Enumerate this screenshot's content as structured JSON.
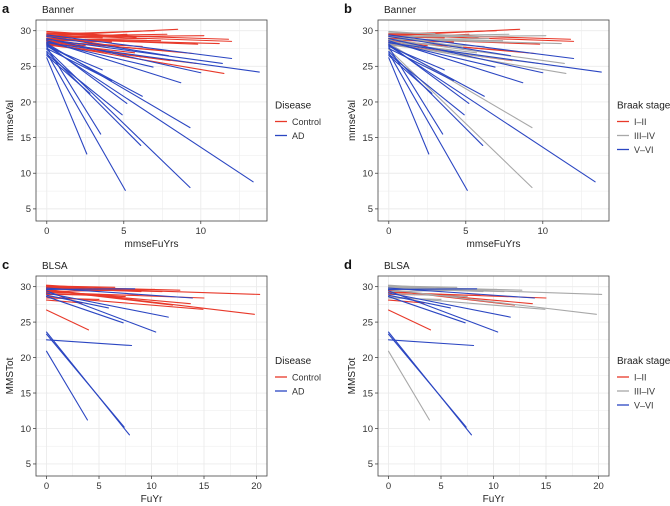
{
  "colors": {
    "Control": "#e8392a",
    "AD": "#2b46c2",
    "I–II": "#e8392a",
    "III–IV": "#a8a8a8",
    "V–VI": "#2b46c2",
    "grid": "#ebebeb",
    "axis": "#444444"
  },
  "chart_data": [
    {
      "type": "line",
      "panel_letter": "a",
      "title": "Banner",
      "xlabel": "mmseFuYrs",
      "ylabel": "mmseVal",
      "xlim": [
        -0.7,
        14.3
      ],
      "ylim": [
        3.3,
        31.5
      ],
      "xticks": [
        0,
        5,
        10
      ],
      "yticks": [
        5,
        10,
        15,
        20,
        25,
        30
      ],
      "legend": {
        "title": "Disease",
        "entries": [
          "Control",
          "AD"
        ],
        "position": "right"
      },
      "series": [
        {
          "name": "Control",
          "segments": [
            [
              0,
              29.6,
              11.8,
              28.8
            ],
            [
              0,
              29.4,
              12,
              28.5
            ],
            [
              0,
              29.3,
              8.5,
              30.2
            ],
            [
              0,
              29.1,
              10.2,
              29.3
            ],
            [
              0,
              28.9,
              9.8,
              28.1
            ],
            [
              0,
              29.2,
              7.8,
              29.5
            ],
            [
              0,
              28.8,
              11.2,
              28.2
            ],
            [
              0,
              28.7,
              6.5,
              28.9
            ],
            [
              0,
              28.6,
              9.5,
              26.8
            ],
            [
              0,
              28.9,
              5.2,
              29.5
            ],
            [
              0,
              28.5,
              7.8,
              27.2
            ],
            [
              0,
              28.2,
              11.5,
              24
            ],
            [
              0,
              28.4,
              6.2,
              27.8
            ],
            [
              0,
              28.7,
              4.2,
              28.4
            ],
            [
              0,
              29.1,
              3.6,
              29
            ],
            [
              0,
              28.1,
              8,
              25.8
            ],
            [
              0,
              28.3,
              5.7,
              26.9
            ],
            [
              0,
              29.5,
              7,
              30
            ],
            [
              0,
              28.8,
              7.4,
              28.6
            ],
            [
              0,
              29.7,
              3,
              29.6
            ],
            [
              0,
              28,
              9.7,
              25.4
            ],
            [
              0,
              28.4,
              2.5,
              27.9
            ],
            [
              0,
              29.3,
              4.8,
              27.7
            ],
            [
              0,
              28.6,
              6.2,
              26.3
            ],
            [
              0,
              29.9,
              5.8,
              29.1
            ]
          ]
        },
        {
          "name": "AD",
          "segments": [
            [
              0,
              26.2,
              2.6,
              12.7
            ],
            [
              0,
              26.9,
              5.1,
              7.6
            ],
            [
              0,
              27.4,
              9.3,
              8
            ],
            [
              0,
              27.9,
              13.4,
              8.8
            ],
            [
              0,
              27.7,
              3.5,
              15.5
            ],
            [
              0,
              28.2,
              9.3,
              16.4
            ],
            [
              0,
              26.7,
              4.9,
              18.2
            ],
            [
              0,
              27.1,
              6.1,
              13.9
            ],
            [
              0,
              28.3,
              13.8,
              24.2
            ],
            [
              0,
              28.8,
              11.4,
              25.4
            ],
            [
              0,
              28,
              6.2,
              20.8
            ],
            [
              0,
              27.5,
              4.2,
              23
            ],
            [
              0,
              28.6,
              8.7,
              22.7
            ],
            [
              0,
              26.5,
              2.8,
              21.2
            ],
            [
              0,
              28.9,
              10,
              24.1
            ],
            [
              0,
              29.2,
              7.9,
              26.5
            ],
            [
              0,
              27.8,
              3.6,
              24.5
            ],
            [
              0,
              28.1,
              5.2,
              19.8
            ],
            [
              0,
              29.4,
              12,
              26.1
            ],
            [
              0,
              28.4,
              6.9,
              24.9
            ]
          ]
        }
      ]
    },
    {
      "type": "line",
      "panel_letter": "b",
      "title": "Banner",
      "xlabel": "mmseFuYrs",
      "ylabel": "mmseVal",
      "xlim": [
        -0.7,
        14.3
      ],
      "ylim": [
        3.3,
        31.5
      ],
      "xticks": [
        0,
        5,
        10
      ],
      "yticks": [
        5,
        10,
        15,
        20,
        25,
        30
      ],
      "legend": {
        "title": "Braak stage",
        "entries": [
          "I–II",
          "III–IV",
          "V–VI"
        ],
        "position": "right"
      },
      "series": [
        {
          "name": "I–II",
          "segments": [
            [
              0,
              29.6,
              11.8,
              28.8
            ],
            [
              0,
              29.4,
              12,
              28.5
            ],
            [
              0,
              29.3,
              8.5,
              30.2
            ],
            [
              0,
              28.9,
              9.8,
              28.1
            ],
            [
              0,
              28.6,
              9.5,
              26.8
            ],
            [
              0,
              28.9,
              5.2,
              29.5
            ],
            [
              0,
              28.5,
              7.8,
              27.2
            ],
            [
              0,
              28.7,
              4.2,
              28.4
            ],
            [
              0,
              29.1,
              3.6,
              29
            ],
            [
              0,
              28.1,
              8,
              25.8
            ],
            [
              0,
              29.5,
              7,
              30
            ],
            [
              0,
              28.4,
              2.5,
              27.9
            ]
          ]
        },
        {
          "name": "III–IV",
          "segments": [
            [
              0,
              29.1,
              10.2,
              29.3
            ],
            [
              0,
              29.2,
              7.8,
              29.5
            ],
            [
              0,
              28.8,
              11.2,
              28.2
            ],
            [
              0,
              28.7,
              6.5,
              28.9
            ],
            [
              0,
              28.2,
              11.5,
              24
            ],
            [
              0,
              28.4,
              6.2,
              27.8
            ],
            [
              0,
              28.3,
              5.7,
              26.9
            ],
            [
              0,
              28.8,
              7.4,
              28.6
            ],
            [
              0,
              29.7,
              3,
              29.6
            ],
            [
              0,
              28,
              9.7,
              25.4
            ],
            [
              0,
              29.3,
              4.8,
              27.7
            ],
            [
              0,
              28.6,
              6.2,
              26.3
            ],
            [
              0,
              29.9,
              5.8,
              29.1
            ],
            [
              0,
              27.4,
              9.3,
              8
            ],
            [
              0,
              28.2,
              9.3,
              16.4
            ],
            [
              0,
              28.8,
              11.4,
              25.4
            ]
          ]
        },
        {
          "name": "V–VI",
          "segments": [
            [
              0,
              26.2,
              2.6,
              12.7
            ],
            [
              0,
              26.9,
              5.1,
              7.6
            ],
            [
              0,
              27.9,
              13.4,
              8.8
            ],
            [
              0,
              27.7,
              3.5,
              15.5
            ],
            [
              0,
              26.7,
              4.9,
              18.2
            ],
            [
              0,
              27.1,
              6.1,
              13.9
            ],
            [
              0,
              28.3,
              13.8,
              24.2
            ],
            [
              0,
              28,
              6.2,
              20.8
            ],
            [
              0,
              27.5,
              4.2,
              23
            ],
            [
              0,
              28.6,
              8.7,
              22.7
            ],
            [
              0,
              26.5,
              2.8,
              21.2
            ],
            [
              0,
              28.9,
              10,
              24.1
            ],
            [
              0,
              29.2,
              7.9,
              26.5
            ],
            [
              0,
              27.8,
              3.6,
              24.5
            ],
            [
              0,
              28.1,
              5.2,
              19.8
            ],
            [
              0,
              29.4,
              12,
              26.1
            ],
            [
              0,
              28.4,
              6.9,
              24.9
            ]
          ]
        }
      ]
    },
    {
      "type": "line",
      "panel_letter": "c",
      "title": "BLSA",
      "xlabel": "FuYr",
      "ylabel": "MMSTot",
      "xlim": [
        -1,
        21
      ],
      "ylim": [
        3.3,
        31.5
      ],
      "xticks": [
        0,
        5,
        10,
        15,
        20
      ],
      "yticks": [
        5,
        10,
        15,
        20,
        25,
        30
      ],
      "legend": {
        "title": "Disease",
        "entries": [
          "Control",
          "AD"
        ],
        "position": "right"
      },
      "series": [
        {
          "name": "Control",
          "segments": [
            [
              0,
              29.9,
              20.3,
              28.9
            ],
            [
              0,
              29.6,
              19.8,
              26.1
            ],
            [
              0,
              30,
              12.7,
              29.5
            ],
            [
              0,
              29.2,
              15,
              28.4
            ],
            [
              0,
              29.7,
              11,
              29.3
            ],
            [
              0,
              29.4,
              13.7,
              27.6
            ],
            [
              0,
              28.9,
              8.7,
              28.8
            ],
            [
              0,
              30.1,
              6.5,
              29.9
            ],
            [
              0,
              29.3,
              10.3,
              29.6
            ],
            [
              0,
              28.6,
              14.9,
              26.8
            ],
            [
              0,
              29.8,
              9,
              29.3
            ],
            [
              0,
              28.4,
              5,
              28.2
            ],
            [
              0,
              29,
              7.5,
              28.6
            ],
            [
              0,
              26.7,
              4,
              23.9
            ],
            [
              0,
              29.5,
              12,
              27.4
            ],
            [
              0,
              30.2,
              4.3,
              29.8
            ],
            [
              0,
              28.1,
              3.4,
              27.7
            ]
          ]
        },
        {
          "name": "AD",
          "segments": [
            [
              0,
              23.6,
              7.9,
              9.1
            ],
            [
              0,
              23.3,
              7.4,
              10.2
            ],
            [
              0,
              20.9,
              3.9,
              11.2
            ],
            [
              0,
              22.5,
              8.1,
              21.7
            ],
            [
              0,
              29.4,
              10.4,
              23.6
            ],
            [
              0,
              29.8,
              13.9,
              28.4
            ],
            [
              0,
              29.1,
              11.6,
              25.7
            ],
            [
              0,
              28.6,
              7.3,
              24.9
            ],
            [
              0,
              29.6,
              8.4,
              29.7
            ],
            [
              0,
              28.8,
              5.9,
              27
            ]
          ]
        }
      ]
    },
    {
      "type": "line",
      "panel_letter": "d",
      "title": "BLSA",
      "xlabel": "FuYr",
      "ylabel": "MMSTot",
      "xlim": [
        -1,
        21
      ],
      "ylim": [
        3.3,
        31.5
      ],
      "xticks": [
        0,
        5,
        10,
        15,
        20
      ],
      "yticks": [
        5,
        10,
        15,
        20,
        25,
        30
      ],
      "legend": {
        "title": "Braak stage",
        "entries": [
          "I–II",
          "III–IV",
          "V–VI"
        ],
        "position": "right"
      },
      "series": [
        {
          "name": "I–II",
          "segments": [
            [
              0,
              29.2,
              15,
              28.4
            ],
            [
              0,
              29.4,
              13.7,
              27.6
            ],
            [
              0,
              28.9,
              8.7,
              28.8
            ],
            [
              0,
              26.7,
              4,
              23.9
            ],
            [
              0,
              29.5,
              12,
              27.4
            ],
            [
              0,
              28.1,
              3.4,
              27.7
            ]
          ]
        },
        {
          "name": "III–IV",
          "segments": [
            [
              0,
              29.9,
              20.3,
              28.9
            ],
            [
              0,
              29.6,
              19.8,
              26.1
            ],
            [
              0,
              30,
              12.7,
              29.5
            ],
            [
              0,
              29.7,
              11,
              29.3
            ],
            [
              0,
              30.1,
              6.5,
              29.9
            ],
            [
              0,
              29.3,
              10.3,
              29.6
            ],
            [
              0,
              28.6,
              14.9,
              26.8
            ],
            [
              0,
              29.8,
              9,
              29.3
            ],
            [
              0,
              28.4,
              5,
              28.2
            ],
            [
              0,
              29,
              7.5,
              28.6
            ],
            [
              0,
              30.2,
              4.3,
              29.8
            ],
            [
              0,
              20.9,
              3.9,
              11.2
            ]
          ]
        },
        {
          "name": "V–VI",
          "segments": [
            [
              0,
              23.6,
              7.9,
              9.1
            ],
            [
              0,
              23.3,
              7.4,
              10.2
            ],
            [
              0,
              22.5,
              8.1,
              21.7
            ],
            [
              0,
              29.4,
              10.4,
              23.6
            ],
            [
              0,
              29.8,
              13.9,
              28.4
            ],
            [
              0,
              29.1,
              11.6,
              25.7
            ],
            [
              0,
              28.6,
              7.3,
              24.9
            ],
            [
              0,
              29.6,
              8.4,
              29.7
            ],
            [
              0,
              28.8,
              5.9,
              27
            ]
          ]
        }
      ]
    }
  ]
}
